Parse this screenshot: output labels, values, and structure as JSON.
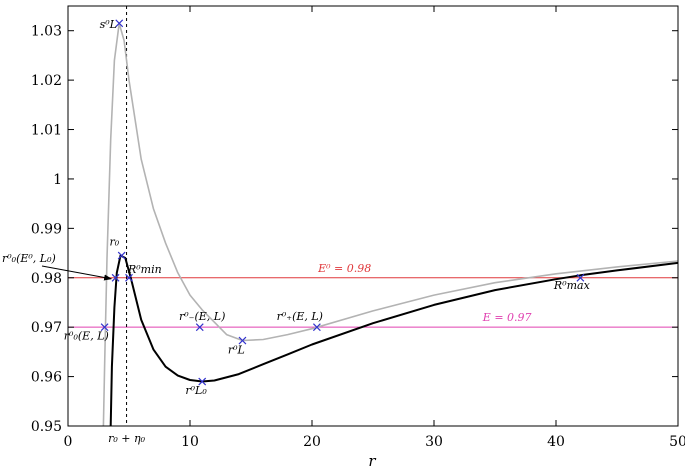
{
  "chart_data": {
    "type": "line",
    "xlabel": "r",
    "ylabel": "",
    "xlim": [
      0,
      50
    ],
    "ylim": [
      0.95,
      1.035
    ],
    "x_ticks": [
      0,
      10,
      20,
      30,
      40,
      50
    ],
    "x_tick_labels": [
      "0",
      "10",
      "20",
      "30",
      "40",
      "50"
    ],
    "y_ticks": [
      0.95,
      0.96,
      0.97,
      0.98,
      0.99,
      1.0,
      1.01,
      1.02,
      1.03
    ],
    "y_tick_labels": [
      "0.95",
      "0.96",
      "0.97",
      "0.98",
      "0.99",
      "1",
      "1.01",
      "1.02",
      "1.03"
    ],
    "grid": false,
    "colors": {
      "gray_curve": "#b3b3b3",
      "black_curve": "#000000",
      "red_line": "#e0393c",
      "magenta_line": "#e040b0",
      "marker": "#3333cc"
    },
    "series": [
      {
        "color": "#b3b3b3",
        "points": [
          [
            2.9,
            0.95
          ],
          [
            3.0,
            0.962
          ],
          [
            3.2,
            0.984
          ],
          [
            3.5,
            1.008
          ],
          [
            3.8,
            1.024
          ],
          [
            4.2,
            1.0315
          ],
          [
            4.6,
            1.028
          ],
          [
            5.0,
            1.02
          ],
          [
            5.5,
            1.012
          ],
          [
            6,
            1.004
          ],
          [
            7,
            0.994
          ],
          [
            8,
            0.987
          ],
          [
            9,
            0.981
          ],
          [
            10,
            0.9765
          ],
          [
            11,
            0.9735
          ],
          [
            12,
            0.971
          ],
          [
            13,
            0.9685
          ],
          [
            14.3,
            0.9673
          ],
          [
            16,
            0.9675
          ],
          [
            18,
            0.9685
          ],
          [
            20,
            0.9697
          ],
          [
            25,
            0.9733
          ],
          [
            30,
            0.9765
          ],
          [
            35,
            0.979
          ],
          [
            40,
            0.9808
          ],
          [
            45,
            0.9822
          ],
          [
            50,
            0.9834
          ]
        ]
      },
      {
        "color": "#000000",
        "points": [
          [
            3.5,
            0.95
          ],
          [
            3.6,
            0.962
          ],
          [
            3.8,
            0.974
          ],
          [
            4.0,
            0.981
          ],
          [
            4.3,
            0.9845
          ],
          [
            4.7,
            0.984
          ],
          [
            5.2,
            0.9795
          ],
          [
            6,
            0.9715
          ],
          [
            7,
            0.9655
          ],
          [
            8,
            0.962
          ],
          [
            9,
            0.9602
          ],
          [
            10,
            0.9593
          ],
          [
            11,
            0.959
          ],
          [
            12,
            0.9592
          ],
          [
            14,
            0.9605
          ],
          [
            16,
            0.9625
          ],
          [
            18,
            0.9645
          ],
          [
            20,
            0.9665
          ],
          [
            25,
            0.9708
          ],
          [
            30,
            0.9745
          ],
          [
            35,
            0.9775
          ],
          [
            40,
            0.9797
          ],
          [
            42,
            0.9805
          ],
          [
            45,
            0.9815
          ],
          [
            50,
            0.983
          ]
        ]
      }
    ],
    "hlines": [
      {
        "y": 0.98,
        "color": "#e0393c",
        "label": "E⁰ = 0.98",
        "label_x": 20.5
      },
      {
        "y": 0.97,
        "color": "#e040b0",
        "label": "E = 0.97",
        "label_x": 34
      }
    ],
    "vline": {
      "x": 4.8,
      "label": "r₀ + η₀"
    },
    "markers": [
      {
        "x": 4.2,
        "y": 1.0315,
        "label": "s⁰L",
        "lx": 3.3,
        "ly": 1.0305
      },
      {
        "x": 4.4,
        "y": 0.9845,
        "label": "r₀",
        "lx": 3.8,
        "ly": 0.9865
      },
      {
        "x": 5.0,
        "y": 0.98,
        "label": "R⁰min",
        "lx": 6.3,
        "ly": 0.981
      },
      {
        "x": 3.9,
        "y": 0.98,
        "label": "",
        "lx": 0,
        "ly": 0
      },
      {
        "x": 3.0,
        "y": 0.97,
        "label": "r⁰₀(E, L)",
        "lx": 1.5,
        "ly": 0.9675
      },
      {
        "x": 10.8,
        "y": 0.97,
        "label": "r⁰₋(E, L)",
        "lx": 11.0,
        "ly": 0.9715
      },
      {
        "x": 14.3,
        "y": 0.9673,
        "label": "r⁰L",
        "lx": 13.8,
        "ly": 0.9647
      },
      {
        "x": 20.4,
        "y": 0.97,
        "label": "r⁰₊(E, L)",
        "lx": 19.0,
        "ly": 0.9715
      },
      {
        "x": 11.0,
        "y": 0.959,
        "label": "r⁰L₀",
        "lx": 10.5,
        "ly": 0.9565
      },
      {
        "x": 42.0,
        "y": 0.98,
        "label": "R⁰max",
        "lx": 41.3,
        "ly": 0.9777
      }
    ],
    "arrow": {
      "label": "r⁰₀(E⁰, L₀)",
      "to_x": 3.7,
      "to_y": 0.9802
    }
  }
}
